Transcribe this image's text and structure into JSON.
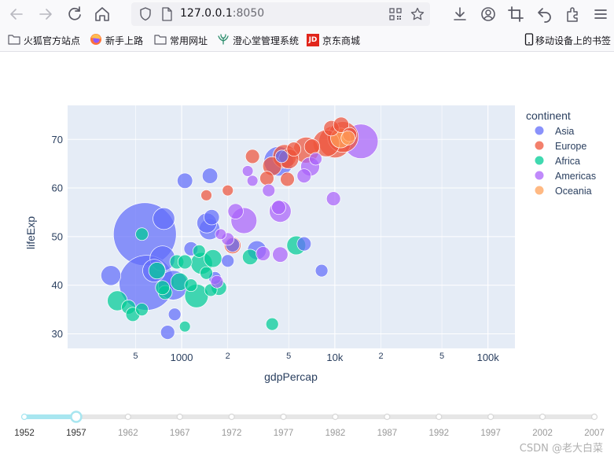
{
  "browser": {
    "url_host": "127.0.0.1",
    "url_port": ":8050",
    "bookmarks": [
      "火狐官方站点",
      "新手上路",
      "常用网址",
      "澄心堂管理系统",
      "京东商城"
    ],
    "mobile_bookmarks": "移动设备上的书签",
    "jd_badge": "JD"
  },
  "colors": {
    "Asia": "#636efa",
    "Europe": "#ef553b",
    "Africa": "#00cc96",
    "Americas": "#ab63fa",
    "Oceania": "#ffa15a"
  },
  "legend": {
    "title": "continent",
    "items": [
      "Asia",
      "Europe",
      "Africa",
      "Americas",
      "Oceania"
    ],
    "position": "right"
  },
  "slider": {
    "years": [
      "1952",
      "1957",
      "1962",
      "1967",
      "1972",
      "1977",
      "1982",
      "1987",
      "1992",
      "1997",
      "2002",
      "2007"
    ],
    "selected": "1957"
  },
  "watermark": "CSDN @老大白菜",
  "chart_data": {
    "type": "scatter",
    "xlabel": "gdpPercap",
    "ylabel": "lifeExp",
    "x_scale": "log",
    "xlim": [
      180,
      150000
    ],
    "ylim": [
      27,
      77
    ],
    "x_ticks": [
      {
        "v": 500,
        "label": "5",
        "minor": true
      },
      {
        "v": 1000,
        "label": "1000",
        "minor": false
      },
      {
        "v": 2000,
        "label": "2",
        "minor": true
      },
      {
        "v": 5000,
        "label": "5",
        "minor": true
      },
      {
        "v": 10000,
        "label": "10k",
        "minor": false
      },
      {
        "v": 20000,
        "label": "2",
        "minor": true
      },
      {
        "v": 50000,
        "label": "5",
        "minor": true
      },
      {
        "v": 100000,
        "label": "100k",
        "minor": false
      }
    ],
    "y_ticks": [
      30,
      40,
      50,
      60,
      70
    ],
    "grid": true,
    "points": [
      {
        "c": "Asia",
        "x": 575,
        "y": 50.5,
        "s": 1.0
      },
      {
        "c": "Asia",
        "x": 590,
        "y": 40.5,
        "s": 0.76
      },
      {
        "c": "Asia",
        "x": 880,
        "y": 40,
        "s": 0.22
      },
      {
        "c": "Asia",
        "x": 750,
        "y": 45.5,
        "s": 0.16
      },
      {
        "c": "Asia",
        "x": 660,
        "y": 43,
        "s": 0.13
      },
      {
        "c": "Asia",
        "x": 765,
        "y": 53.7,
        "s": 0.12
      },
      {
        "c": "Asia",
        "x": 1520,
        "y": 51.5,
        "s": 0.11
      },
      {
        "c": "Asia",
        "x": 1460,
        "y": 52.8,
        "s": 0.1
      },
      {
        "c": "Asia",
        "x": 3100,
        "y": 47.2,
        "s": 0.09
      },
      {
        "c": "Asia",
        "x": 345,
        "y": 42,
        "s": 0.1
      },
      {
        "c": "Asia",
        "x": 4300,
        "y": 65.5,
        "s": 0.22
      },
      {
        "c": "Asia",
        "x": 1050,
        "y": 61.5,
        "s": 0.06
      },
      {
        "c": "Asia",
        "x": 1530,
        "y": 62.5,
        "s": 0.06
      },
      {
        "c": "Asia",
        "x": 1570,
        "y": 54,
        "s": 0.06
      },
      {
        "c": "Asia",
        "x": 2150,
        "y": 48.3,
        "s": 0.05
      },
      {
        "c": "Asia",
        "x": 6300,
        "y": 48.5,
        "s": 0.05
      },
      {
        "c": "Asia",
        "x": 8200,
        "y": 43,
        "s": 0.04
      },
      {
        "c": "Asia",
        "x": 810,
        "y": 30.3,
        "s": 0.05
      },
      {
        "c": "Asia",
        "x": 900,
        "y": 34,
        "s": 0.04
      },
      {
        "c": "Asia",
        "x": 1150,
        "y": 47.5,
        "s": 0.05
      },
      {
        "c": "Asia",
        "x": 2000,
        "y": 45,
        "s": 0.04
      },
      {
        "c": "Asia",
        "x": 4500,
        "y": 66.5,
        "s": 0.04
      },
      {
        "c": "Asia",
        "x": 1650,
        "y": 41.5,
        "s": 0.04
      },
      {
        "c": "Europe",
        "x": 10000,
        "y": 69.5,
        "s": 0.26
      },
      {
        "c": "Europe",
        "x": 11300,
        "y": 70.5,
        "s": 0.24
      },
      {
        "c": "Europe",
        "x": 8800,
        "y": 69.2,
        "s": 0.18
      },
      {
        "c": "Europe",
        "x": 6500,
        "y": 67.8,
        "s": 0.17
      },
      {
        "c": "Europe",
        "x": 4700,
        "y": 66.5,
        "s": 0.14
      },
      {
        "c": "Europe",
        "x": 5000,
        "y": 66,
        "s": 0.1
      },
      {
        "c": "Europe",
        "x": 3900,
        "y": 64.5,
        "s": 0.09
      },
      {
        "c": "Europe",
        "x": 2150,
        "y": 48.2,
        "s": 0.07
      },
      {
        "c": "Europe",
        "x": 9500,
        "y": 72.3,
        "s": 0.06
      },
      {
        "c": "Europe",
        "x": 11000,
        "y": 73,
        "s": 0.06
      },
      {
        "c": "Europe",
        "x": 3600,
        "y": 62,
        "s": 0.05
      },
      {
        "c": "Europe",
        "x": 4900,
        "y": 61.8,
        "s": 0.05
      },
      {
        "c": "Europe",
        "x": 2900,
        "y": 66.5,
        "s": 0.05
      },
      {
        "c": "Europe",
        "x": 7100,
        "y": 68.5,
        "s": 0.06
      },
      {
        "c": "Europe",
        "x": 5400,
        "y": 68,
        "s": 0.05
      },
      {
        "c": "Europe",
        "x": 12500,
        "y": 71,
        "s": 0.05
      },
      {
        "c": "Europe",
        "x": 1450,
        "y": 58.5,
        "s": 0.03
      },
      {
        "c": "Europe",
        "x": 2000,
        "y": 59.5,
        "s": 0.03
      },
      {
        "c": "Africa",
        "x": 1250,
        "y": 37.8,
        "s": 0.14
      },
      {
        "c": "Africa",
        "x": 1350,
        "y": 44.5,
        "s": 0.12
      },
      {
        "c": "Africa",
        "x": 380,
        "y": 36.8,
        "s": 0.1
      },
      {
        "c": "Africa",
        "x": 970,
        "y": 40.7,
        "s": 0.08
      },
      {
        "c": "Africa",
        "x": 5600,
        "y": 48.2,
        "s": 0.09
      },
      {
        "c": "Africa",
        "x": 690,
        "y": 43,
        "s": 0.07
      },
      {
        "c": "Africa",
        "x": 1600,
        "y": 45.5,
        "s": 0.08
      },
      {
        "c": "Africa",
        "x": 1750,
        "y": 39.5,
        "s": 0.06
      },
      {
        "c": "Africa",
        "x": 2800,
        "y": 45.8,
        "s": 0.06
      },
      {
        "c": "Africa",
        "x": 780,
        "y": 38.5,
        "s": 0.05
      },
      {
        "c": "Africa",
        "x": 930,
        "y": 44.8,
        "s": 0.05
      },
      {
        "c": "Africa",
        "x": 1050,
        "y": 44.8,
        "s": 0.05
      },
      {
        "c": "Africa",
        "x": 450,
        "y": 35.5,
        "s": 0.05
      },
      {
        "c": "Africa",
        "x": 480,
        "y": 34,
        "s": 0.05
      },
      {
        "c": "Africa",
        "x": 750,
        "y": 39.5,
        "s": 0.05
      },
      {
        "c": "Africa",
        "x": 3900,
        "y": 32,
        "s": 0.04
      },
      {
        "c": "Africa",
        "x": 1300,
        "y": 47,
        "s": 0.04
      },
      {
        "c": "Africa",
        "x": 1550,
        "y": 39,
        "s": 0.04
      },
      {
        "c": "Africa",
        "x": 550,
        "y": 50.5,
        "s": 0.04
      },
      {
        "c": "Africa",
        "x": 1150,
        "y": 40,
        "s": 0.04
      },
      {
        "c": "Africa",
        "x": 1450,
        "y": 42.5,
        "s": 0.04
      },
      {
        "c": "Africa",
        "x": 550,
        "y": 35,
        "s": 0.04
      },
      {
        "c": "Africa",
        "x": 1050,
        "y": 31.5,
        "s": 0.03
      },
      {
        "c": "Americas",
        "x": 14800,
        "y": 69.6,
        "s": 0.3
      },
      {
        "c": "Americas",
        "x": 2550,
        "y": 53.3,
        "s": 0.17
      },
      {
        "c": "Americas",
        "x": 4400,
        "y": 55.2,
        "s": 0.12
      },
      {
        "c": "Americas",
        "x": 6900,
        "y": 64.4,
        "s": 0.09
      },
      {
        "c": "Americas",
        "x": 4400,
        "y": 46.3,
        "s": 0.06
      },
      {
        "c": "Americas",
        "x": 2250,
        "y": 55.2,
        "s": 0.06
      },
      {
        "c": "Americas",
        "x": 6300,
        "y": 62.5,
        "s": 0.05
      },
      {
        "c": "Americas",
        "x": 4300,
        "y": 56,
        "s": 0.05
      },
      {
        "c": "Americas",
        "x": 3400,
        "y": 46.5,
        "s": 0.05
      },
      {
        "c": "Americas",
        "x": 9800,
        "y": 57.8,
        "s": 0.05
      },
      {
        "c": "Americas",
        "x": 3700,
        "y": 59.5,
        "s": 0.04
      },
      {
        "c": "Americas",
        "x": 7500,
        "y": 66,
        "s": 0.04
      },
      {
        "c": "Americas",
        "x": 2000,
        "y": 49.5,
        "s": 0.04
      },
      {
        "c": "Americas",
        "x": 1700,
        "y": 40.7,
        "s": 0.04
      },
      {
        "c": "Americas",
        "x": 2900,
        "y": 61.5,
        "s": 0.03
      },
      {
        "c": "Americas",
        "x": 2700,
        "y": 63.5,
        "s": 0.03
      },
      {
        "c": "Americas",
        "x": 1800,
        "y": 50.5,
        "s": 0.03
      },
      {
        "c": "Oceania",
        "x": 10900,
        "y": 70.3,
        "s": 0.1
      },
      {
        "c": "Oceania",
        "x": 12200,
        "y": 70.3,
        "s": 0.05
      }
    ]
  }
}
